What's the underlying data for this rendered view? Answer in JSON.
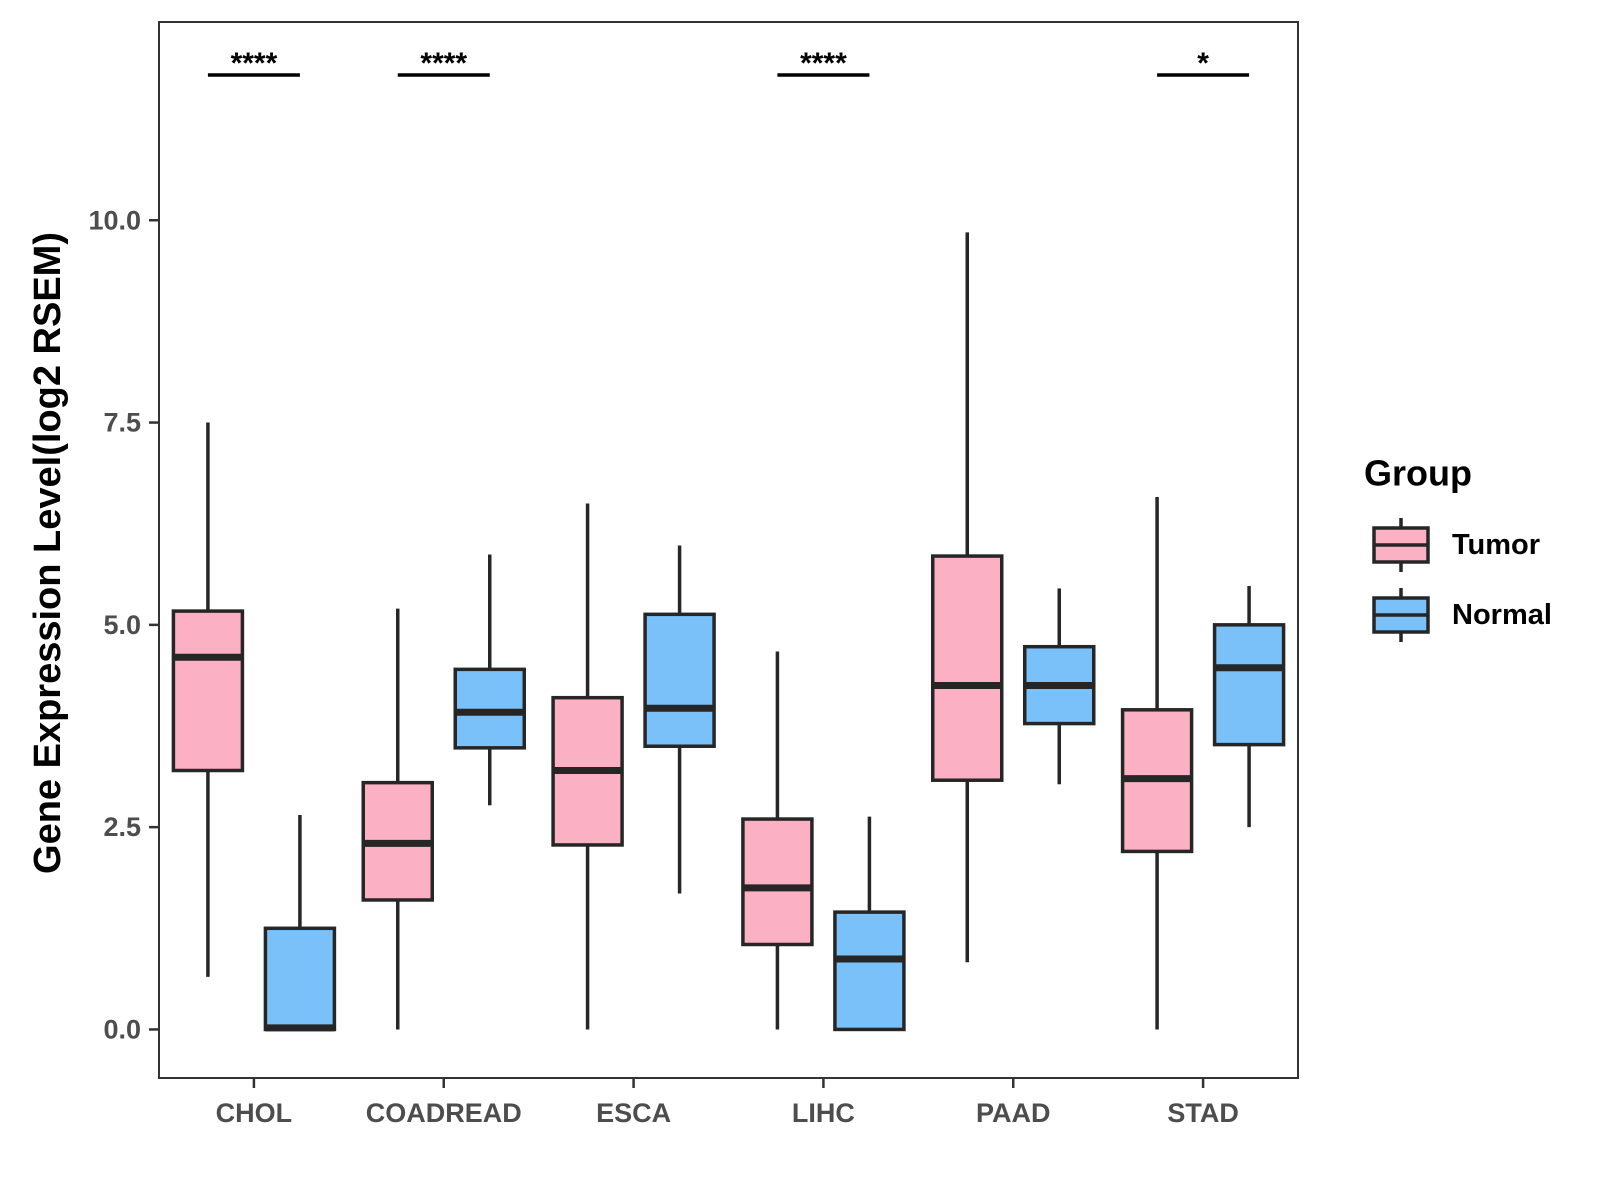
{
  "chart_data": {
    "type": "boxplot",
    "ylabel": "Gene Expression Level(log2 RSEM)",
    "xlabel": "",
    "ylim": [
      -0.6,
      12.45
    ],
    "yticks": [
      0.0,
      2.5,
      5.0,
      7.5,
      10.0
    ],
    "ytick_labels": [
      "0.0",
      "2.5",
      "5.0",
      "7.5",
      "10.0"
    ],
    "categories": [
      "CHOL",
      "COADREAD",
      "ESCA",
      "LIHC",
      "PAAD",
      "STAD"
    ],
    "legend": {
      "title": "Group",
      "position": "right",
      "items": [
        {
          "name": "Tumor",
          "color": "#FBB1C3"
        },
        {
          "name": "Normal",
          "color": "#79C1F8"
        }
      ]
    },
    "series": [
      {
        "name": "Tumor",
        "color": "#FBB1C3",
        "boxes": [
          {
            "category": "CHOL",
            "min": 0.65,
            "q1": 3.2,
            "median": 4.6,
            "q3": 5.17,
            "max": 7.5
          },
          {
            "category": "COADREAD",
            "min": 0.0,
            "q1": 1.6,
            "median": 2.3,
            "q3": 3.05,
            "max": 5.2
          },
          {
            "category": "ESCA",
            "min": 0.0,
            "q1": 2.28,
            "median": 3.2,
            "q3": 4.1,
            "max": 6.5
          },
          {
            "category": "LIHC",
            "min": 0.0,
            "q1": 1.05,
            "median": 1.75,
            "q3": 2.6,
            "max": 4.67
          },
          {
            "category": "PAAD",
            "min": 0.83,
            "q1": 3.08,
            "median": 4.25,
            "q3": 5.85,
            "max": 9.85
          },
          {
            "category": "STAD",
            "min": 0.0,
            "q1": 2.2,
            "median": 3.1,
            "q3": 3.95,
            "max": 6.58
          }
        ]
      },
      {
        "name": "Normal",
        "color": "#79C1F8",
        "boxes": [
          {
            "category": "CHOL",
            "min": 0.0,
            "q1": 0.0,
            "median": 0.02,
            "q3": 1.25,
            "max": 2.65
          },
          {
            "category": "COADREAD",
            "min": 2.77,
            "q1": 3.48,
            "median": 3.92,
            "q3": 4.45,
            "max": 5.87
          },
          {
            "category": "ESCA",
            "min": 1.68,
            "q1": 3.5,
            "median": 3.97,
            "q3": 5.13,
            "max": 5.98
          },
          {
            "category": "LIHC",
            "min": 0.0,
            "q1": 0.0,
            "median": 0.87,
            "q3": 1.45,
            "max": 2.63
          },
          {
            "category": "PAAD",
            "min": 3.03,
            "q1": 3.78,
            "median": 4.25,
            "q3": 4.73,
            "max": 5.45
          },
          {
            "category": "STAD",
            "min": 2.5,
            "q1": 3.52,
            "median": 4.47,
            "q3": 5.0,
            "max": 5.48
          }
        ]
      }
    ],
    "significance": [
      {
        "category": "CHOL",
        "label": "****"
      },
      {
        "category": "COADREAD",
        "label": "****"
      },
      {
        "category": "LIHC",
        "label": "****"
      },
      {
        "category": "STAD",
        "label": "*"
      }
    ]
  }
}
